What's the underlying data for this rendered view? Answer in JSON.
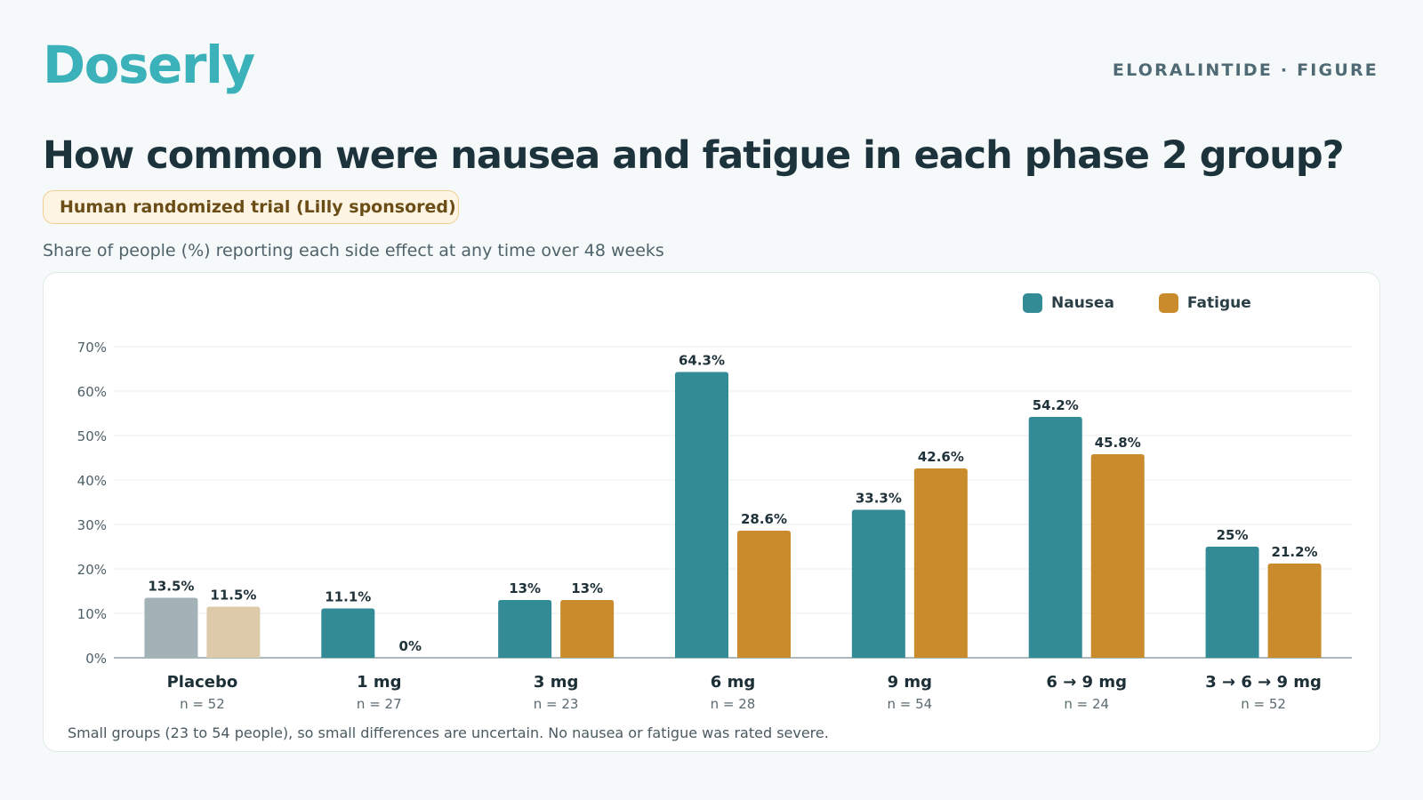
{
  "header": {
    "logo": "Doserly",
    "tagline": "ELORALINTIDE · FIGURE",
    "title": "How common were nausea and fatigue in each phase 2 group?",
    "badge": "Human randomized trial (Lilly sponsored)",
    "subtitle": "Share of people (%) reporting each side effect at any time over 48 weeks"
  },
  "legend": {
    "nausea": "Nausea",
    "fatigue": "Fatigue"
  },
  "colors": {
    "nausea": "#338b96",
    "fatigue": "#c98b2c",
    "placebo_nausea": "#a2b2b6",
    "placebo_fatigue": "#dccaab",
    "brand": "#3bb2b9"
  },
  "chart_data": {
    "type": "bar",
    "categories": [
      "Placebo",
      "1 mg",
      "3 mg",
      "6 mg",
      "9 mg",
      "6 → 9 mg",
      "3 → 6 → 9 mg"
    ],
    "group_sizes": [
      "n = 52",
      "n = 27",
      "n = 23",
      "n = 28",
      "n = 54",
      "n = 24",
      "n = 52"
    ],
    "series": [
      {
        "name": "Nausea",
        "values": [
          13.5,
          11.1,
          13,
          64.3,
          33.3,
          54.2,
          25
        ]
      },
      {
        "name": "Fatigue",
        "values": [
          11.5,
          0,
          13,
          28.6,
          42.6,
          45.8,
          21.2
        ]
      }
    ],
    "data_labels": [
      [
        "13.5%",
        "11.1%",
        "13%",
        "64.3%",
        "33.3%",
        "54.2%",
        "25%"
      ],
      [
        "11.5%",
        "0%",
        "13%",
        "28.6%",
        "42.6%",
        "45.8%",
        "21.2%"
      ]
    ],
    "yticks": [
      "0%",
      "10%",
      "20%",
      "30%",
      "40%",
      "50%",
      "60%",
      "70%"
    ],
    "ylim": [
      0,
      70
    ],
    "grid": true,
    "legend_position": "top-right"
  },
  "footnote": "Small groups (23 to 54 people), so small differences are uncertain. No nausea or fatigue was rated severe."
}
